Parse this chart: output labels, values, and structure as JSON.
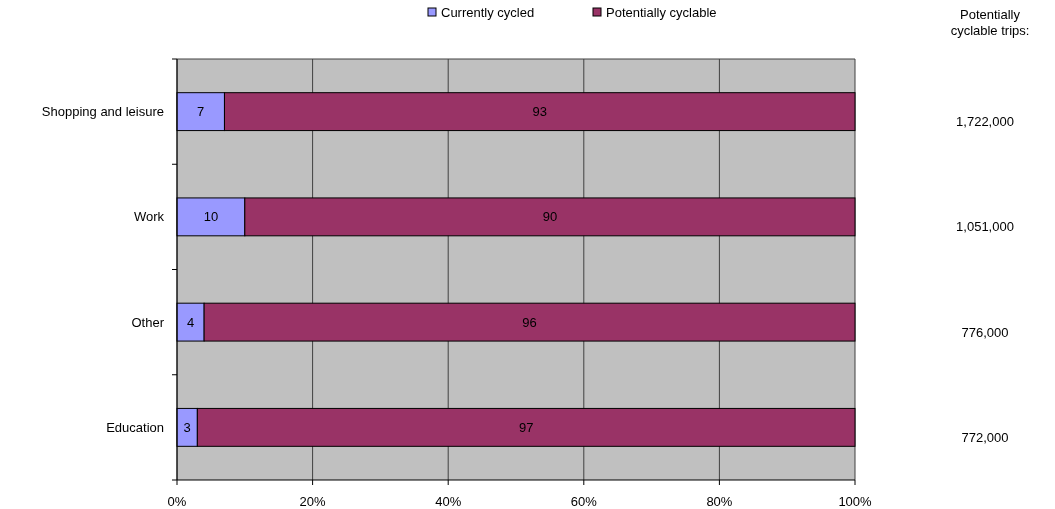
{
  "chart_data": {
    "type": "bar",
    "orientation": "horizontal",
    "stacked": true,
    "categories": [
      "Shopping and leisure",
      "Work",
      "Other",
      "Education"
    ],
    "series": [
      {
        "name": "Currently cycled",
        "color": "#9999ff",
        "values": [
          7,
          10,
          4,
          3
        ]
      },
      {
        "name": "Potentially cyclable",
        "color": "#993366",
        "values": [
          93,
          90,
          96,
          97
        ]
      }
    ],
    "xlim": [
      0,
      100
    ],
    "xticks": [
      {
        "value": 0,
        "label": "0%"
      },
      {
        "value": 20,
        "label": "20%"
      },
      {
        "value": 40,
        "label": "40%"
      },
      {
        "value": 60,
        "label": "60%"
      },
      {
        "value": 80,
        "label": "80%"
      },
      {
        "value": 100,
        "label": "100%"
      }
    ],
    "data_labels": true,
    "grid": "x",
    "legend": "top",
    "annotations": [
      "Potentially cyclable trips:",
      "1,722,000",
      "1,051,000",
      "776,000",
      "772,000"
    ]
  }
}
